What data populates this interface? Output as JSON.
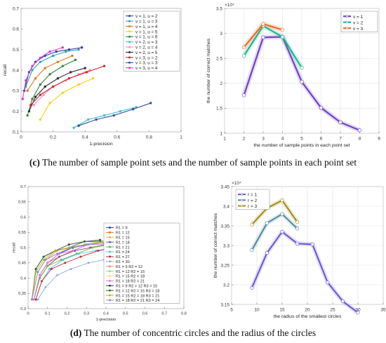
{
  "captions": {
    "c_letter": "(c)",
    "c_text": "The number of sample point sets and the number of sample points in each point set",
    "d_letter": "(d)",
    "d_text": "The number of concentric circles and the radius of the circles"
  },
  "chart_data": [
    {
      "type": "line",
      "xlabel": "1-precision",
      "ylabel": "recall",
      "xlim": [
        0,
        1
      ],
      "ylim": [
        0.1,
        0.7
      ],
      "xticks": [
        0,
        0.2,
        0.4,
        0.6,
        0.8,
        1
      ],
      "yticks": [
        0.1,
        0.2,
        0.3,
        0.4,
        0.5,
        0.6,
        0.7
      ],
      "xtick_labels": [
        "0",
        "0.2",
        "0.4",
        "0.6",
        "0.8",
        "1"
      ],
      "ytick_labels": [
        "0.1",
        "0.2",
        "0.3",
        "0.4",
        "0.5",
        "0.6",
        "0.7"
      ],
      "grid": false,
      "legend_position": "top-right",
      "series": [
        {
          "name": "v = 1, u = 2",
          "color": "#2b3da8",
          "x": [
            0.02,
            0.05,
            0.09,
            0.15,
            0.22,
            0.3,
            0.38
          ],
          "y": [
            0.3,
            0.39,
            0.44,
            0.47,
            0.49,
            0.5,
            0.51
          ]
        },
        {
          "name": "v = 1, u = 3",
          "color": "#2aa6a6",
          "x": [
            0.03,
            0.07,
            0.12,
            0.2,
            0.28,
            0.36
          ],
          "y": [
            0.32,
            0.4,
            0.44,
            0.47,
            0.49,
            0.5
          ]
        },
        {
          "name": "v = 1, u = 4",
          "color": "#e07a1f",
          "x": [
            0.04,
            0.09,
            0.15,
            0.23,
            0.32
          ],
          "y": [
            0.3,
            0.36,
            0.41,
            0.44,
            0.47
          ]
        },
        {
          "name": "v = 1, u = 5",
          "color": "#f2d21b",
          "x": [
            0.12,
            0.18,
            0.26,
            0.36,
            0.45
          ],
          "y": [
            0.16,
            0.24,
            0.29,
            0.33,
            0.36
          ]
        },
        {
          "name": "v = 1, u = 6",
          "color": "#2b8a3e",
          "x": [
            0.04,
            0.07,
            0.12,
            0.18,
            0.26,
            0.34
          ],
          "y": [
            0.18,
            0.26,
            0.33,
            0.38,
            0.42,
            0.45
          ]
        },
        {
          "name": "v = 2, u = 3",
          "color": "#35c4d8",
          "x": [
            0.33,
            0.42,
            0.52,
            0.62,
            0.72
          ],
          "y": [
            0.12,
            0.16,
            0.18,
            0.2,
            0.22
          ]
        },
        {
          "name": "v = 2, u = 4",
          "color": "#f08fc8",
          "x": [
            0.08,
            0.14,
            0.2,
            0.28,
            0.36,
            0.43
          ],
          "y": [
            0.23,
            0.28,
            0.32,
            0.35,
            0.38,
            0.4
          ]
        },
        {
          "name": "v = 2, u = 5",
          "color": "#2e2e2e",
          "x": [
            0.05,
            0.09,
            0.15,
            0.23,
            0.31,
            0.4
          ],
          "y": [
            0.2,
            0.27,
            0.32,
            0.36,
            0.39,
            0.41
          ]
        },
        {
          "name": "v = 3, u = 2",
          "color": "#d62424",
          "x": [
            0.06,
            0.12,
            0.2,
            0.3,
            0.41,
            0.52
          ],
          "y": [
            0.23,
            0.28,
            0.32,
            0.36,
            0.39,
            0.42
          ]
        },
        {
          "name": "v = 3, u = 3",
          "color": "#3b4a96",
          "x": [
            0.36,
            0.47,
            0.58,
            0.7,
            0.81
          ],
          "y": [
            0.13,
            0.16,
            0.18,
            0.21,
            0.24
          ]
        },
        {
          "name": "v = 3, u = 4",
          "color": "#d43bd4",
          "x": [
            0.01,
            0.03,
            0.07,
            0.12,
            0.18,
            0.26
          ],
          "y": [
            0.26,
            0.35,
            0.42,
            0.46,
            0.49,
            0.51
          ]
        }
      ]
    },
    {
      "type": "line",
      "xlabel": "the number of sample points in each point set",
      "ylabel": "the number of correct matches",
      "y_multiplier": "×10⁴",
      "xlim": [
        1,
        9
      ],
      "ylim": [
        1,
        3.5
      ],
      "xticks": [
        1,
        2,
        3,
        4,
        5,
        6,
        7,
        8,
        9
      ],
      "yticks": [
        1,
        1.5,
        2,
        2.5,
        3,
        3.5
      ],
      "xtick_labels": [
        "1",
        "2",
        "3",
        "4",
        "5",
        "6",
        "7",
        "8",
        "9"
      ],
      "ytick_labels": [
        "1",
        "1.5",
        "2",
        "2.5",
        "3",
        "3.5"
      ],
      "grid": true,
      "legend_position": "top-right",
      "series": [
        {
          "name": "v = 1",
          "color": "#7043c4",
          "x": [
            2,
            3,
            4,
            5,
            6,
            7,
            8
          ],
          "y": [
            1.76,
            2.92,
            2.93,
            2.03,
            1.51,
            1.22,
            1.06
          ]
        },
        {
          "name": "v = 2",
          "color": "#1fb58d",
          "x": [
            2,
            3,
            4,
            5
          ],
          "y": [
            2.55,
            3.15,
            2.93,
            2.31
          ]
        },
        {
          "name": "v = 3",
          "color": "#ef6a2a",
          "x": [
            2,
            3,
            4
          ],
          "y": [
            2.72,
            3.19,
            3.07
          ]
        }
      ]
    },
    {
      "type": "line",
      "xlabel": "1-precision",
      "ylabel": "recall",
      "xlim": [
        0,
        0.8
      ],
      "ylim": [
        0.3,
        0.7
      ],
      "xticks": [
        0,
        0.1,
        0.2,
        0.3,
        0.4,
        0.5,
        0.6,
        0.7,
        0.8
      ],
      "yticks": [
        0.3,
        0.35,
        0.4,
        0.45,
        0.5,
        0.55,
        0.6,
        0.65,
        0.7
      ],
      "xtick_labels": [
        "0",
        "0.1",
        "0.2",
        "0.3",
        "0.4",
        "0.5",
        "0.6",
        "0.7",
        "0.8"
      ],
      "ytick_labels": [
        "0.3",
        "0.35",
        "0.4",
        "0.45",
        "0.5",
        "0.55",
        "0.6",
        "0.65",
        "0.7"
      ],
      "grid": false,
      "legend_position": "center-right",
      "series": [
        {
          "name": "R1 = 9",
          "color": "#2b3da8",
          "x": [
            0.03,
            0.06,
            0.1,
            0.16,
            0.23,
            0.31,
            0.39
          ],
          "y": [
            0.33,
            0.41,
            0.45,
            0.48,
            0.5,
            0.51,
            0.52
          ]
        },
        {
          "name": "R1 = 12",
          "color": "#ef6a2a",
          "x": [
            0.03,
            0.06,
            0.1,
            0.16,
            0.23,
            0.31,
            0.39
          ],
          "y": [
            0.33,
            0.41,
            0.45,
            0.47,
            0.49,
            0.51,
            0.515
          ]
        },
        {
          "name": "R1 = 15",
          "color": "#e5c21a",
          "x": [
            0.03,
            0.06,
            0.1,
            0.16,
            0.24,
            0.32,
            0.4
          ],
          "y": [
            0.33,
            0.4,
            0.44,
            0.47,
            0.49,
            0.5,
            0.51
          ]
        },
        {
          "name": "R1 = 18",
          "color": "#7a4bb5",
          "x": [
            0.03,
            0.06,
            0.1,
            0.16,
            0.24,
            0.32,
            0.41
          ],
          "y": [
            0.33,
            0.4,
            0.44,
            0.47,
            0.49,
            0.5,
            0.51
          ]
        },
        {
          "name": "R1 = 21",
          "color": "#6fb33a",
          "x": [
            0.03,
            0.06,
            0.1,
            0.17,
            0.25,
            0.33,
            0.42
          ],
          "y": [
            0.33,
            0.4,
            0.44,
            0.46,
            0.48,
            0.5,
            0.51
          ]
        },
        {
          "name": "R1 = 24",
          "color": "#4ec5e8",
          "x": [
            0.04,
            0.07,
            0.11,
            0.18,
            0.26,
            0.35,
            0.44
          ],
          "y": [
            0.33,
            0.39,
            0.43,
            0.46,
            0.48,
            0.49,
            0.5
          ]
        },
        {
          "name": "R1 = 27",
          "color": "#c22a3a",
          "x": [
            0.04,
            0.07,
            0.12,
            0.19,
            0.27,
            0.36,
            0.45
          ],
          "y": [
            0.33,
            0.39,
            0.43,
            0.45,
            0.47,
            0.49,
            0.5
          ]
        },
        {
          "name": "R1 = 30",
          "color": "#8fa8e8",
          "x": [
            0.05,
            0.09,
            0.15,
            0.22,
            0.31,
            0.39,
            0.47
          ],
          "y": [
            0.33,
            0.37,
            0.41,
            0.43,
            0.45,
            0.46,
            0.47
          ]
        },
        {
          "name": "R1 = 9  R2 = 12",
          "color": "#e98a8a",
          "x": [
            0.02,
            0.05,
            0.09,
            0.15,
            0.22,
            0.3,
            0.38
          ],
          "y": [
            0.33,
            0.42,
            0.46,
            0.49,
            0.5,
            0.51,
            0.52
          ]
        },
        {
          "name": "R1 = 12 R2 = 15",
          "color": "#9ad88a",
          "x": [
            0.02,
            0.05,
            0.09,
            0.15,
            0.22,
            0.3,
            0.38
          ],
          "y": [
            0.33,
            0.42,
            0.46,
            0.48,
            0.5,
            0.51,
            0.52
          ]
        },
        {
          "name": "R1 = 15 R2 = 18",
          "color": "#f2e27a",
          "x": [
            0.02,
            0.05,
            0.09,
            0.15,
            0.22,
            0.3,
            0.39
          ],
          "y": [
            0.33,
            0.42,
            0.46,
            0.48,
            0.5,
            0.51,
            0.52
          ]
        },
        {
          "name": "R1 = 18 R2 = 21",
          "color": "#e07ad8",
          "x": [
            0.03,
            0.06,
            0.1,
            0.16,
            0.23,
            0.31,
            0.4
          ],
          "y": [
            0.33,
            0.41,
            0.45,
            0.48,
            0.49,
            0.51,
            0.51
          ]
        },
        {
          "name": "R1 = 9   R2 = 12 R3 = 15",
          "color": "#3a3a3a",
          "x": [
            0.02,
            0.04,
            0.08,
            0.14,
            0.21,
            0.29,
            0.37
          ],
          "y": [
            0.33,
            0.43,
            0.47,
            0.49,
            0.51,
            0.52,
            0.525
          ]
        },
        {
          "name": "R1 = 12 R2 = 15 R3 = 18",
          "color": "#2d6b2d",
          "x": [
            0.02,
            0.04,
            0.08,
            0.14,
            0.21,
            0.29,
            0.37
          ],
          "y": [
            0.33,
            0.43,
            0.47,
            0.49,
            0.5,
            0.52,
            0.52
          ]
        },
        {
          "name": "R1 = 15 R2 = 18 R3 = 21",
          "color": "#b8b814",
          "x": [
            0.02,
            0.04,
            0.08,
            0.14,
            0.21,
            0.29,
            0.38
          ],
          "y": [
            0.33,
            0.42,
            0.46,
            0.49,
            0.5,
            0.51,
            0.52
          ]
        },
        {
          "name": "R1 = 18 R2 = 21 R3 = 24",
          "color": "#8a8ad8",
          "x": [
            0.02,
            0.05,
            0.09,
            0.15,
            0.22,
            0.3,
            0.39
          ],
          "y": [
            0.33,
            0.42,
            0.46,
            0.48,
            0.5,
            0.51,
            0.515
          ]
        }
      ]
    },
    {
      "type": "line",
      "xlabel": "the radius of the smallest circles",
      "ylabel": "the number of correct matches",
      "y_multiplier": "×10⁴",
      "xlim": [
        5,
        35
      ],
      "ylim": [
        3.15,
        3.45
      ],
      "xticks": [
        5,
        10,
        15,
        20,
        25,
        30,
        35
      ],
      "yticks": [
        3.15,
        3.2,
        3.25,
        3.3,
        3.35,
        3.4,
        3.45
      ],
      "xtick_labels": [
        "5",
        "10",
        "15",
        "20",
        "25",
        "30",
        "35"
      ],
      "ytick_labels": [
        "3.15",
        "3.2",
        "3.25",
        "3.3",
        "3.35",
        "3.4",
        "3.45"
      ],
      "grid": true,
      "legend_position": "top-left",
      "series": [
        {
          "name": "r = 1",
          "color": "#6a52d6",
          "x": [
            9,
            12,
            15,
            18,
            21,
            24,
            27,
            30
          ],
          "y": [
            3.192,
            3.281,
            3.335,
            3.305,
            3.303,
            3.206,
            3.158,
            3.129
          ]
        },
        {
          "name": "r = 2",
          "color": "#4d8a9a",
          "x": [
            9,
            12,
            15,
            18
          ],
          "y": [
            3.288,
            3.357,
            3.38,
            3.343
          ]
        },
        {
          "name": "r = 3",
          "color": "#a08a14",
          "x": [
            9,
            12,
            15,
            18
          ],
          "y": [
            3.353,
            3.395,
            3.415,
            3.36
          ]
        }
      ]
    }
  ]
}
